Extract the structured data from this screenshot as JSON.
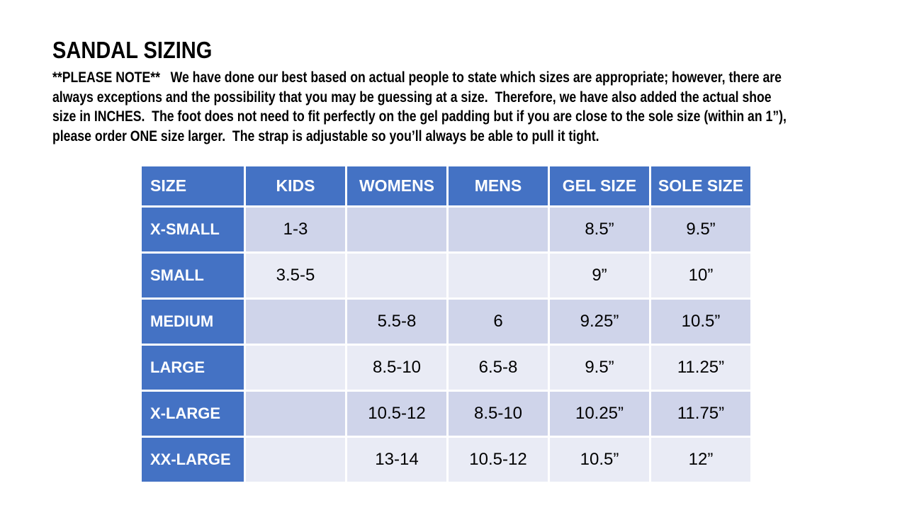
{
  "title": "SANDAL SIZING",
  "note_lines": [
    "**PLEASE NOTE**   We have done our best based on actual people to state which sizes are appropriate; however, there are",
    "always exceptions and the possibility that you may be guessing at a size.  Therefore, we have also added the actual shoe",
    "size in INCHES.  The foot does not need to fit perfectly on the gel padding but if you are close to the sole size (within an 1”),",
    "please order ONE size larger.  The strap is adjustable so you’ll always be able to pull it tight."
  ],
  "table": {
    "columns": [
      "SIZE",
      "KIDS",
      "WOMENS",
      "MENS",
      "GEL SIZE",
      "SOLE SIZE"
    ],
    "rows": [
      {
        "size": "X-SMALL",
        "kids": "1-3",
        "womens": "",
        "mens": "",
        "gel_size": "8.5”",
        "sole_size": "9.5”"
      },
      {
        "size": "SMALL",
        "kids": "3.5-5",
        "womens": "",
        "mens": "",
        "gel_size": "9”",
        "sole_size": "10”"
      },
      {
        "size": "MEDIUM",
        "kids": "",
        "womens": "5.5-8",
        "mens": "6",
        "gel_size": "9.25”",
        "sole_size": "10.5”"
      },
      {
        "size": "LARGE",
        "kids": "",
        "womens": "8.5-10",
        "mens": "6.5-8",
        "gel_size": "9.5”",
        "sole_size": "11.25”"
      },
      {
        "size": "X-LARGE",
        "kids": "",
        "womens": "10.5-12",
        "mens": "8.5-10",
        "gel_size": "10.25”",
        "sole_size": "11.75”"
      },
      {
        "size": "XX-LARGE",
        "kids": "",
        "womens": "13-14",
        "mens": "10.5-12",
        "gel_size": "10.5”",
        "sole_size": "12”"
      }
    ]
  },
  "colors": {
    "header_bg": "#4472C4",
    "label_col_bg": "#4472C4",
    "header_text": "#FFFFFF",
    "band_dark": "#CFD4EA",
    "band_light": "#E9EBF5",
    "body_text": "#000000"
  }
}
